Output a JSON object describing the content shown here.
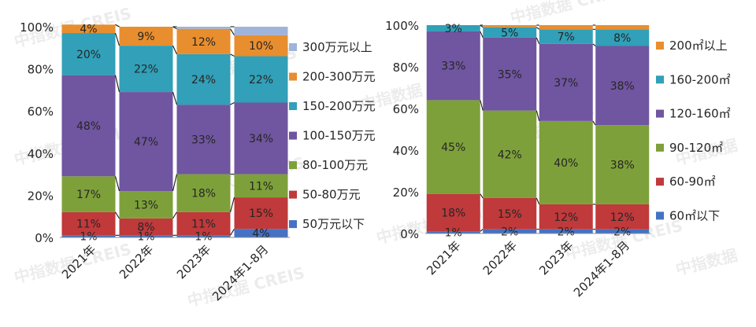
{
  "watermark": {
    "text": "中指数据 CREIS",
    "text_short": "中指数据",
    "color": "#dcdcdc"
  },
  "chart_data": [
    {
      "type": "bar",
      "stacked": true,
      "percent": true,
      "categories": [
        "2021年",
        "2022年",
        "2023年",
        "2024年1-8月"
      ],
      "ylim": [
        0,
        100
      ],
      "yticks": [
        "0%",
        "20%",
        "40%",
        "60%",
        "80%",
        "100%"
      ],
      "legend_position": "right",
      "series": [
        {
          "name": "50万元以下",
          "color": "#4472c4",
          "values": [
            1,
            1,
            1,
            4
          ],
          "labels": [
            "1%",
            "1%",
            "1%",
            "4%"
          ]
        },
        {
          "name": "50-80万元",
          "color": "#c0393b",
          "values": [
            11,
            8,
            11,
            15
          ],
          "labels": [
            "11%",
            "8%",
            "11%",
            "15%"
          ]
        },
        {
          "name": "80-100万元",
          "color": "#7ea03a",
          "values": [
            17,
            13,
            18,
            11
          ],
          "labels": [
            "17%",
            "13%",
            "18%",
            "11%"
          ]
        },
        {
          "name": "100-150万元",
          "color": "#7055a0",
          "values": [
            48,
            47,
            33,
            34
          ],
          "labels": [
            "48%",
            "47%",
            "33%",
            "34%"
          ]
        },
        {
          "name": "150-200万元",
          "color": "#31a0b8",
          "values": [
            20,
            22,
            24,
            22
          ],
          "labels": [
            "20%",
            "22%",
            "24%",
            "22%"
          ]
        },
        {
          "name": "200-300万元",
          "color": "#e88e2e",
          "values": [
            4,
            9,
            12,
            10
          ],
          "labels": [
            "4%",
            "9%",
            "12%",
            "10%"
          ]
        },
        {
          "name": "300万元以上",
          "color": "#9fb4da",
          "values": [
            0,
            0,
            1,
            4
          ],
          "labels": [
            "",
            "",
            "",
            ""
          ]
        }
      ]
    },
    {
      "type": "bar",
      "stacked": true,
      "percent": true,
      "categories": [
        "2021年",
        "2022年",
        "2023年",
        "2024年1-8月"
      ],
      "ylim": [
        0,
        100
      ],
      "yticks": [
        "0%",
        "20%",
        "40%",
        "60%",
        "80%",
        "100%"
      ],
      "legend_position": "right",
      "series": [
        {
          "name": "60㎡以下",
          "color": "#4472c4",
          "values": [
            1,
            2,
            2,
            2
          ],
          "labels": [
            "1%",
            "2%",
            "2%",
            "2%"
          ]
        },
        {
          "name": "60-90㎡",
          "color": "#c0393b",
          "values": [
            18,
            15,
            12,
            12
          ],
          "labels": [
            "18%",
            "15%",
            "12%",
            "12%"
          ]
        },
        {
          "name": "90-120㎡",
          "color": "#7ea03a",
          "values": [
            45,
            42,
            40,
            38
          ],
          "labels": [
            "45%",
            "42%",
            "40%",
            "38%"
          ]
        },
        {
          "name": "120-160㎡",
          "color": "#7055a0",
          "values": [
            33,
            35,
            37,
            38
          ],
          "labels": [
            "33%",
            "35%",
            "37%",
            "38%"
          ]
        },
        {
          "name": "160-200㎡",
          "color": "#31a0b8",
          "values": [
            3,
            5,
            7,
            8
          ],
          "labels": [
            "3%",
            "5%",
            "7%",
            "8%"
          ]
        },
        {
          "name": "200㎡以上",
          "color": "#e88e2e",
          "values": [
            0,
            1,
            2,
            2
          ],
          "labels": [
            "",
            "",
            "",
            ""
          ]
        }
      ]
    }
  ]
}
